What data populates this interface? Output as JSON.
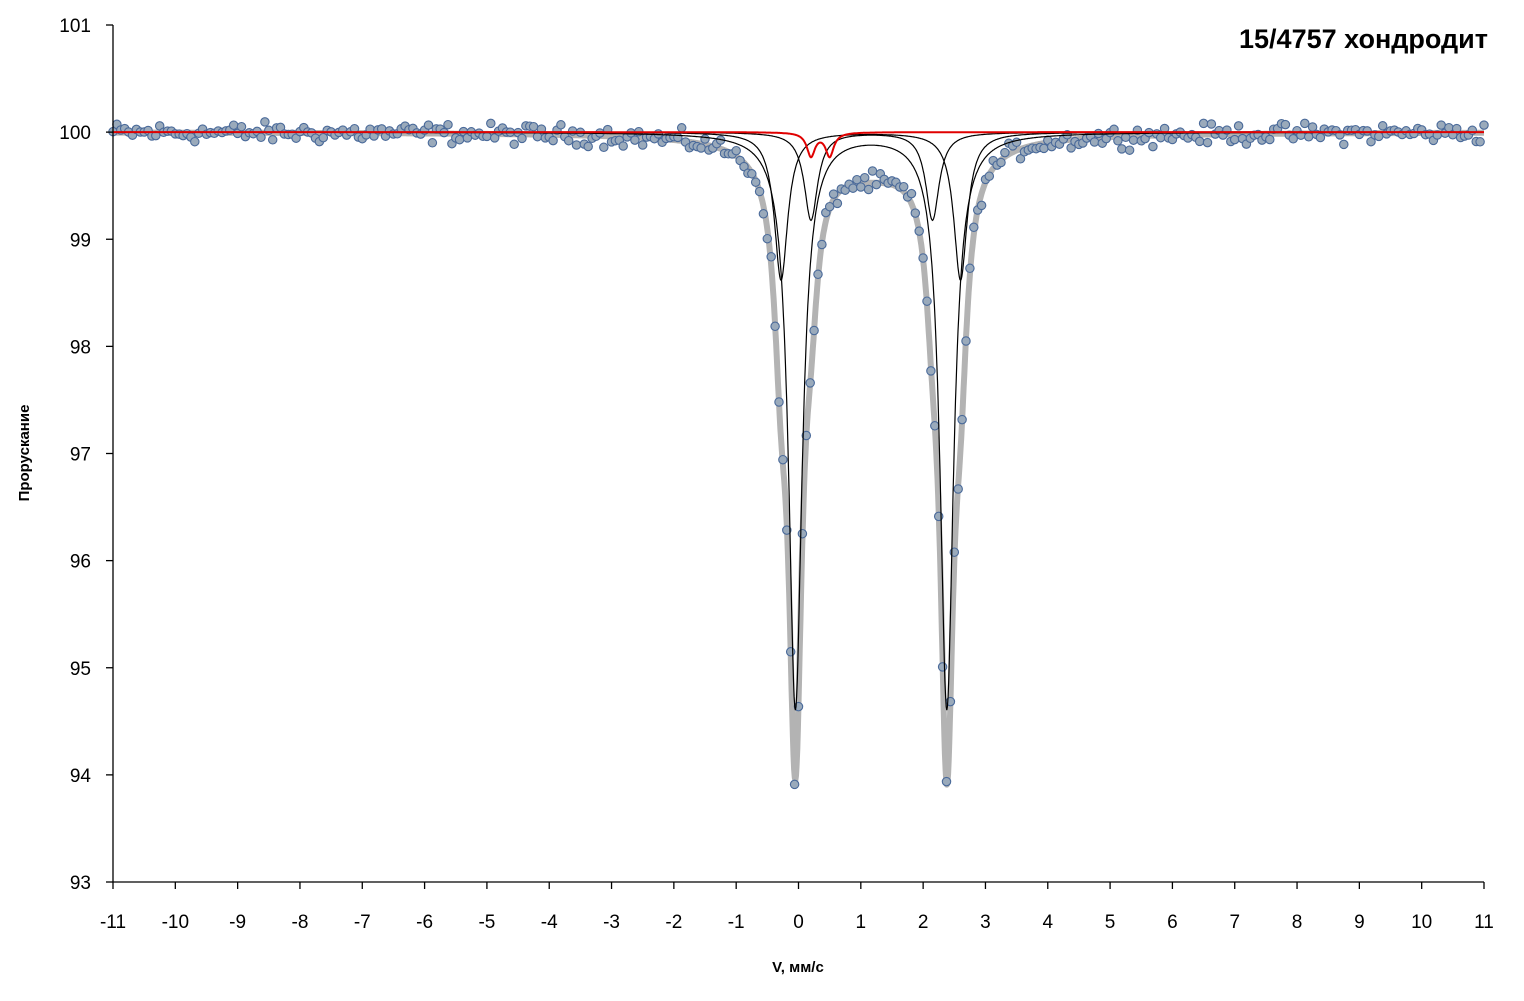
{
  "chart_data": {
    "type": "scatter",
    "title": "15/4757 хондродит",
    "xlabel": "V, мм/с",
    "ylabel": "Прорускание",
    "xlim": [
      -11,
      11
    ],
    "ylim": [
      93,
      101
    ],
    "xticks": [
      -11,
      -10,
      -9,
      -8,
      -7,
      -6,
      -5,
      -4,
      -3,
      -2,
      -1,
      0,
      1,
      2,
      3,
      4,
      5,
      6,
      7,
      8,
      9,
      10,
      11
    ],
    "yticks": [
      93,
      94,
      95,
      96,
      97,
      98,
      99,
      100,
      101
    ],
    "grid": false,
    "legend": "none",
    "baseline": 100,
    "point_step": 0.0625,
    "noise_amplitude": 0.07,
    "colors": {
      "points_fill": "#9aaabb",
      "points_stroke": "#4a6a9a",
      "envelope": "#b3b3b3",
      "component_lines": "#000000",
      "component_red": "#e00000",
      "axis": "#000000"
    },
    "components": [
      {
        "type": "doublet",
        "color": "black",
        "center1": -0.28,
        "center2": 2.6,
        "depth": 1.38,
        "hwhm": 0.13
      },
      {
        "type": "doublet",
        "color": "black",
        "center1": -0.05,
        "center2": 2.38,
        "depth": 5.38,
        "hwhm": 0.13
      },
      {
        "type": "doublet",
        "color": "black",
        "center1": 0.2,
        "center2": 2.15,
        "depth": 0.82,
        "hwhm": 0.13
      },
      {
        "type": "doublet",
        "color": "red",
        "center1": 0.2,
        "center2": 0.5,
        "depth": 0.22,
        "hwhm": 0.08
      }
    ],
    "broad_background": {
      "center": 1.15,
      "depth": 0.3,
      "hwhm": 1.1
    }
  }
}
